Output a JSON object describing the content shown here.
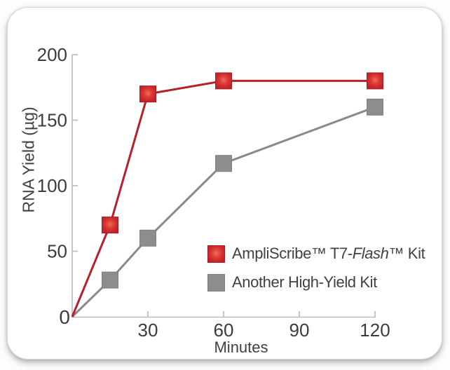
{
  "chart_data": {
    "type": "line",
    "title": "",
    "xlabel": "Minutes",
    "ylabel": "RNA Yield (µg)",
    "xlim": [
      0,
      120
    ],
    "ylim": [
      0,
      200
    ],
    "xticks": [
      30,
      60,
      90,
      120
    ],
    "yticks": [
      0,
      50,
      100,
      150,
      200
    ],
    "grid": false,
    "x": [
      0,
      15,
      30,
      60,
      120
    ],
    "series": [
      {
        "name": "AmpliScribe™ T7-Flash™ Kit",
        "values": [
          0,
          70,
          170,
          180,
          180
        ],
        "marker": "square",
        "line_color": "#b7202a",
        "marker_gradient": [
          "#ef6f5c",
          "#dd3b35",
          "#c22129"
        ],
        "marker_border": "#a81e24"
      },
      {
        "name": "Another High-Yield Kit",
        "values": [
          0,
          28,
          60,
          117,
          160
        ],
        "marker": "square",
        "line_color": "#8a8a8c",
        "marker_fill": "#8d8d8f",
        "marker_border": "#7f7f81"
      }
    ],
    "legend": {
      "position": "inside-bottom-right",
      "items": [
        {
          "swatch": "red-gradient-square",
          "segments": [
            {
              "text": "AmpliScribe™ T7-"
            },
            {
              "text": "Flash",
              "italic": true
            },
            {
              "text": "™ Kit"
            }
          ]
        },
        {
          "swatch": "gray-square",
          "segments": [
            {
              "text": "Another High-Yield Kit"
            }
          ]
        }
      ]
    },
    "axis_color": "#b9b9b9",
    "tick_label_color": "#3c3c3e",
    "text_color": "#414042"
  }
}
